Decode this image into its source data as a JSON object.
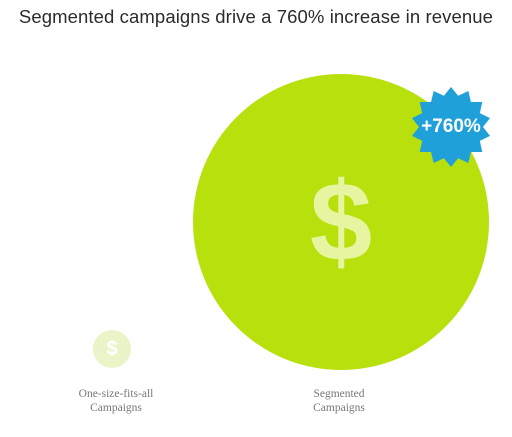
{
  "title": "Segmented campaigns drive a 760% increase in revenue",
  "items": [
    {
      "label_line1": "One-size-fits-all",
      "label_line2": "Campaigns",
      "icon": "dollar-icon",
      "icon_glyph": "$",
      "circle_color": "#eaf4c8"
    },
    {
      "label_line1": "Segmented",
      "label_line2": "Campaigns",
      "icon": "dollar-icon",
      "icon_glyph": "$",
      "circle_color": "#b7e00d"
    }
  ],
  "badge": {
    "text": "+760%",
    "color": "#1fa0d8"
  }
}
